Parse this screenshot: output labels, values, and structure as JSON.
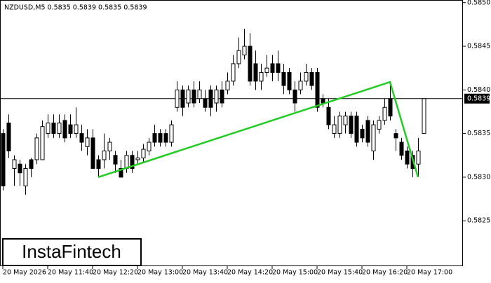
{
  "chart_data": {
    "type": "candlestick",
    "title": "NZDUSD,M5  0.5835 0.5839 0.5835 0.5839",
    "categories": [
      "20 May 2026",
      null,
      null,
      null,
      null,
      null,
      null,
      null,
      "20 May 11:40",
      null,
      null,
      null,
      null,
      null,
      null,
      null,
      "20 May 12:20",
      null,
      null,
      null,
      null,
      null,
      null,
      null,
      "20 May 13:00",
      null,
      null,
      null,
      null,
      null,
      null,
      null,
      "20 May 13:40",
      null,
      null,
      null,
      null,
      null,
      null,
      null,
      "20 May 14:20",
      null,
      null,
      null,
      null,
      null,
      null,
      null,
      "20 May 15:00",
      null,
      null,
      null,
      null,
      null,
      null,
      null,
      "20 May 15:40",
      null,
      null,
      null,
      null,
      null,
      null,
      null,
      "20 May 16:20",
      null,
      null,
      null,
      null,
      null,
      null,
      null,
      "20 May 17:00",
      null,
      null,
      null
    ],
    "open": [
      0.5835,
      0.58362,
      0.5831,
      0.58315,
      0.5829,
      0.5832,
      0.5832,
      0.5832,
      0.5835,
      0.58362,
      0.5835,
      0.58365,
      0.5836,
      0.5835,
      0.5835,
      0.58335,
      0.58345,
      0.5832,
      0.5832,
      0.5833,
      0.58325,
      0.5831,
      0.5831,
      0.58325,
      0.5832,
      0.58322,
      0.5833,
      0.5835,
      0.5835,
      0.5835,
      0.5834,
      0.5838,
      0.584,
      0.58385,
      0.584,
      0.5839,
      0.5839,
      0.584,
      0.58385,
      0.584,
      0.584,
      0.5841,
      0.5843,
      0.5844,
      0.5845,
      0.5843,
      0.5841,
      0.5842,
      0.5843,
      0.5843,
      0.5842,
      0.5842,
      0.584,
      0.584,
      0.5841,
      0.5842,
      0.5842,
      0.5839,
      0.5838,
      0.5835,
      0.5835,
      0.5836,
      0.5837,
      0.5837,
      0.58355,
      0.58365,
      0.5833,
      0.58355,
      0.58365,
      0.5839,
      0.5835,
      0.5834,
      0.5833,
      0.58325,
      0.58315,
      0.5835
    ],
    "high": [
      0.58355,
      0.58372,
      0.58325,
      0.5832,
      0.58315,
      0.58322,
      0.5835,
      0.58365,
      0.58372,
      0.58372,
      0.58372,
      0.58372,
      0.58372,
      0.5838,
      0.5836,
      0.58355,
      0.58355,
      0.58325,
      0.5835,
      0.58345,
      0.5833,
      0.5832,
      0.5833,
      0.5833,
      0.5833,
      0.58338,
      0.58345,
      0.5836,
      0.58355,
      0.58355,
      0.58365,
      0.5841,
      0.58405,
      0.58405,
      0.5841,
      0.5841,
      0.584,
      0.58405,
      0.58405,
      0.5841,
      0.5842,
      0.5844,
      0.5846,
      0.5847,
      0.58465,
      0.58445,
      0.5843,
      0.5844,
      0.5844,
      0.58445,
      0.5843,
      0.58425,
      0.5841,
      0.5842,
      0.5843,
      0.58425,
      0.58425,
      0.58395,
      0.5839,
      0.5837,
      0.58375,
      0.58375,
      0.58375,
      0.58375,
      0.5836,
      0.5837,
      0.58365,
      0.5837,
      0.5839,
      0.5841,
      0.58355,
      0.58345,
      0.58335,
      0.5833,
      0.58345,
      0.5839
    ],
    "low": [
      0.58285,
      0.58322,
      0.5829,
      0.5829,
      0.5828,
      0.583,
      0.58315,
      0.5832,
      0.58345,
      0.58345,
      0.58345,
      0.5834,
      0.58345,
      0.58345,
      0.5833,
      0.58325,
      0.5831,
      0.583,
      0.5831,
      0.5832,
      0.58305,
      0.583,
      0.58305,
      0.58305,
      0.58315,
      0.58318,
      0.58325,
      0.58335,
      0.58335,
      0.58335,
      0.58335,
      0.58375,
      0.5837,
      0.5838,
      0.5838,
      0.58385,
      0.58375,
      0.5837,
      0.58375,
      0.5838,
      0.58395,
      0.58405,
      0.58425,
      0.58435,
      0.58405,
      0.584,
      0.584,
      0.58415,
      0.5841,
      0.5841,
      0.58395,
      0.58395,
      0.58375,
      0.58395,
      0.58405,
      0.584,
      0.58375,
      0.5838,
      0.58355,
      0.58345,
      0.58345,
      0.5835,
      0.58345,
      0.58335,
      0.5834,
      0.58335,
      0.5832,
      0.5835,
      0.5836,
      0.58365,
      0.5833,
      0.5832,
      0.5831,
      0.583,
      0.583,
      0.5835
    ],
    "close": [
      0.5829,
      0.5833,
      0.5832,
      0.58305,
      0.5831,
      0.5831,
      0.58345,
      0.58358,
      0.58362,
      0.5835,
      0.58362,
      0.58345,
      0.5835,
      0.5836,
      0.5834,
      0.58345,
      0.5831,
      0.5831,
      0.5833,
      0.5834,
      0.58315,
      0.583,
      0.58325,
      0.5831,
      0.58322,
      0.58332,
      0.5834,
      0.5834,
      0.5834,
      0.5834,
      0.5836,
      0.584,
      0.5838,
      0.584,
      0.58385,
      0.584,
      0.5838,
      0.5838,
      0.584,
      0.58385,
      0.5841,
      0.5843,
      0.58445,
      0.5845,
      0.5841,
      0.5841,
      0.5842,
      0.58425,
      0.5842,
      0.5842,
      0.58405,
      0.584,
      0.58385,
      0.5841,
      0.5842,
      0.58405,
      0.5838,
      0.58385,
      0.5836,
      0.5836,
      0.5837,
      0.5837,
      0.5835,
      0.5834,
      0.58345,
      0.5834,
      0.5836,
      0.58365,
      0.5838,
      0.5837,
      0.58345,
      0.58325,
      0.58315,
      0.5831,
      0.5833,
      0.5839
    ],
    "up_color": "#ffffff",
    "down_color": "#000000",
    "outline_color": "#000000",
    "ylim": [
      0.58198,
      0.58503
    ],
    "yticks": [
      {
        "value": 0.5825,
        "label": "0.5825"
      },
      {
        "value": 0.583,
        "label": "0.5830"
      },
      {
        "value": 0.5835,
        "label": "0.5835"
      },
      {
        "value": 0.584,
        "label": "0.5840"
      },
      {
        "value": 0.5845,
        "label": "0.5845"
      },
      {
        "value": 0.585,
        "label": "0.5850"
      }
    ],
    "last_price": 0.5839,
    "pattern": {
      "color": "#22cc22",
      "points": [
        {
          "x": 17,
          "y": 0.583
        },
        {
          "x": 69,
          "y": 0.58409
        },
        {
          "x": 74,
          "y": 0.583
        }
      ]
    },
    "logo": "InstaFintech"
  }
}
